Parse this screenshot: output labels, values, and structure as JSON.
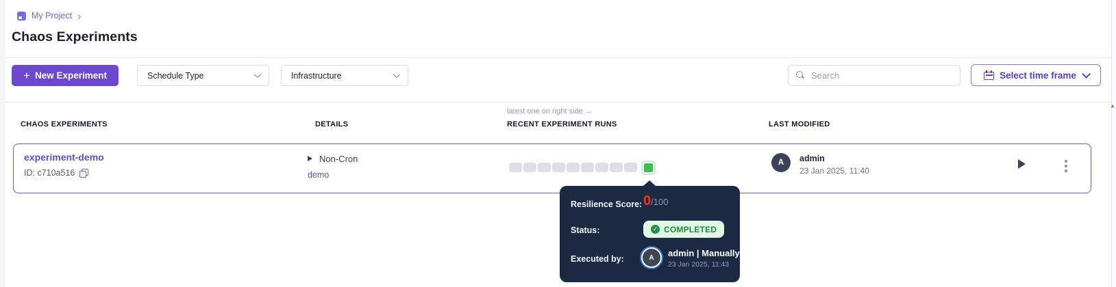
{
  "breadcrumb": {
    "project": "My Project",
    "chevron": "›"
  },
  "page": {
    "title": "Chaos Experiments"
  },
  "toolbar": {
    "new_experiment_plus": "+",
    "new_experiment_label": "New Experiment",
    "schedule_type_label": "Schedule Type",
    "infrastructure_label": "Infrastructure",
    "search_placeholder": "Search",
    "time_frame_label": "Select time frame"
  },
  "table": {
    "annotation": "latest one on right side →",
    "headers": [
      "CHAOS EXPERIMENTS",
      "DETAILS",
      "RECENT EXPERIMENT RUNS",
      "LAST MODIFIED"
    ]
  },
  "experiment": {
    "name": "experiment-demo",
    "id_label": "ID: c710a516",
    "schedule": "Non-Cron",
    "infrastructure": "demo",
    "runs": {
      "past_count": 9,
      "latest_status": "completed"
    },
    "modified_by": "admin",
    "modified_initial": "A",
    "modified_date": "23 Jan 2025, 11:40"
  },
  "tooltip": {
    "resilience_label": "Resilience Score:",
    "score": "0",
    "score_total": "/100",
    "status_label": "Status:",
    "status_check": "✓",
    "status_value": "COMPLETED",
    "executed_label": "Executed by:",
    "executed_initial": "A",
    "executed_by": "admin | Manually",
    "executed_date": "23 Jan 2025, 11:43"
  },
  "scrollbar": {
    "up_arrow": "▲"
  },
  "colors": {
    "primary_purple": "#6b48ce",
    "link_purple": "#5952be",
    "time_frame_purple": "#5a3ec8",
    "row_border_purple": "#6e5bc8",
    "run_pill_gray": "#dddee7",
    "run_success_green": "#3ebe54",
    "tooltip_bg_navy": "#1b2a42",
    "score_red": "#ee3520",
    "status_badge_bg": "#dff7e3",
    "status_badge_text": "#1f8a41"
  }
}
